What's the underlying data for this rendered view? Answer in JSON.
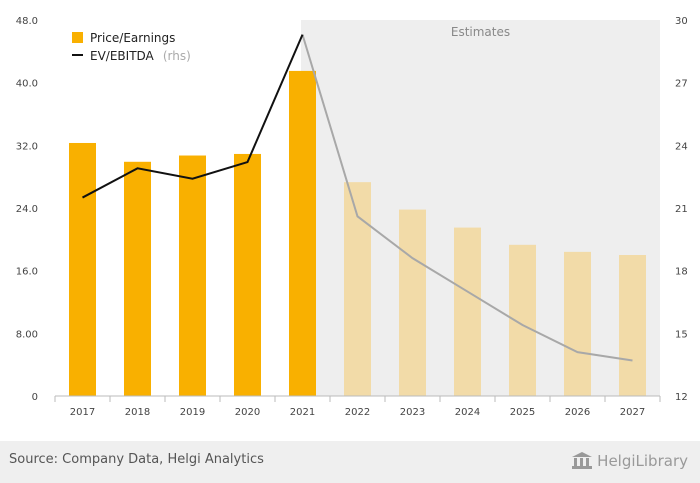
{
  "chart_data": {
    "type": "bar",
    "categories": [
      "2017",
      "2018",
      "2019",
      "2020",
      "2021",
      "2022",
      "2023",
      "2024",
      "2025",
      "2026",
      "2027"
    ],
    "estimates_from": "2022",
    "estimates_label": "Estimates",
    "series": [
      {
        "name": "Price/Earnings",
        "type": "bar",
        "axis": "left",
        "values": [
          32.3,
          29.9,
          30.7,
          30.9,
          41.5,
          27.3,
          23.8,
          21.5,
          19.3,
          18.4,
          18.0
        ]
      },
      {
        "name": "EV/EBITDA",
        "type": "line",
        "axis": "right",
        "values": [
          21.5,
          22.9,
          22.4,
          23.2,
          29.3,
          20.6,
          18.6,
          17.0,
          15.4,
          14.1,
          13.7
        ]
      }
    ],
    "legend_rhs_suffix": "(rhs)",
    "y_left": {
      "ticks": [
        "0",
        "8.00",
        "16.0",
        "24.0",
        "32.0",
        "40.0",
        "48.0"
      ],
      "range": [
        0,
        48
      ]
    },
    "y_right": {
      "ticks": [
        "12",
        "15",
        "18",
        "21",
        "24",
        "27",
        "30"
      ],
      "range": [
        12,
        30
      ]
    },
    "grid": false,
    "legend_position": "top-left"
  },
  "colors": {
    "bar_actual": "#f9b000",
    "bar_estimate": "#f2dba8",
    "line_actual": "#111111",
    "line_estimate": "#a8a8a8",
    "estimate_band": "#eeeeee"
  },
  "footer": {
    "source": "Source: Company Data, Helgi Analytics",
    "logo_text": "HelgiLibrary"
  }
}
